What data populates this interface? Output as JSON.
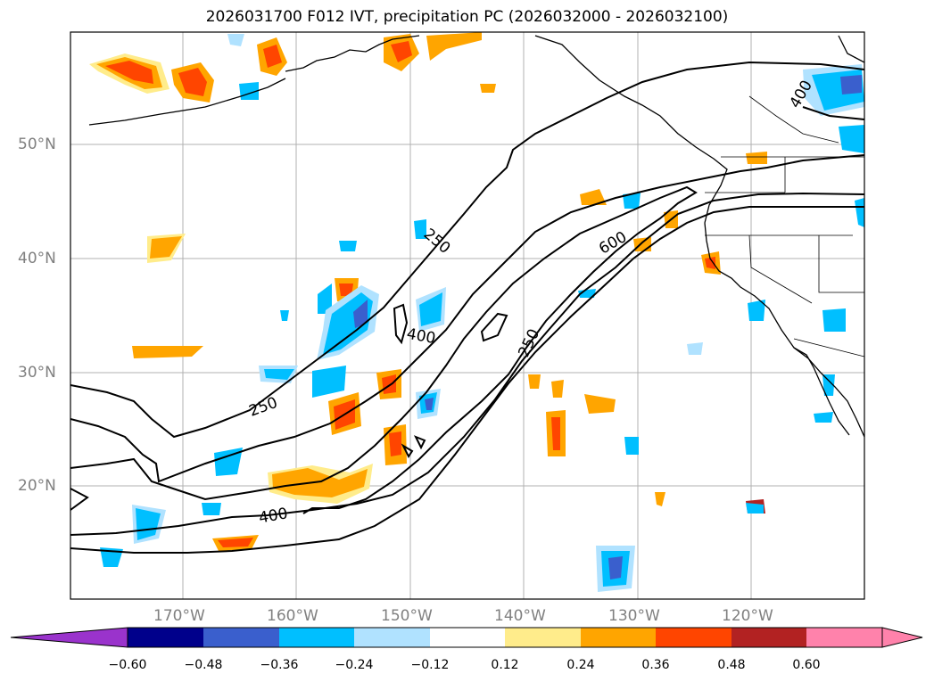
{
  "title": "2026031700 F012 IVT, precipitation PC (2026032000 - 2026032100)",
  "axes": {
    "lat_labels": [
      "50°N",
      "40°N",
      "30°N",
      "20°N"
    ],
    "lon_labels": [
      "170°W",
      "160°W",
      "150°W",
      "140°W",
      "130°W",
      "120°W"
    ]
  },
  "ivt_contour_labels": [
    "250",
    "400",
    "600",
    "250",
    "400",
    "250",
    "400"
  ],
  "colorbar": {
    "ticks": [
      "−0.60",
      "−0.48",
      "−0.36",
      "−0.24",
      "−0.12",
      "0.12",
      "0.24",
      "0.36",
      "0.48",
      "0.60"
    ],
    "colors": [
      "#9a33cc",
      "#00008b",
      "#3a5fcd",
      "#00bfff",
      "#b0e2ff",
      "#ffffff",
      "#ffec8b",
      "#ffa500",
      "#ff4500",
      "#b22222",
      "#ff82ab",
      "#ff82ab"
    ]
  }
}
